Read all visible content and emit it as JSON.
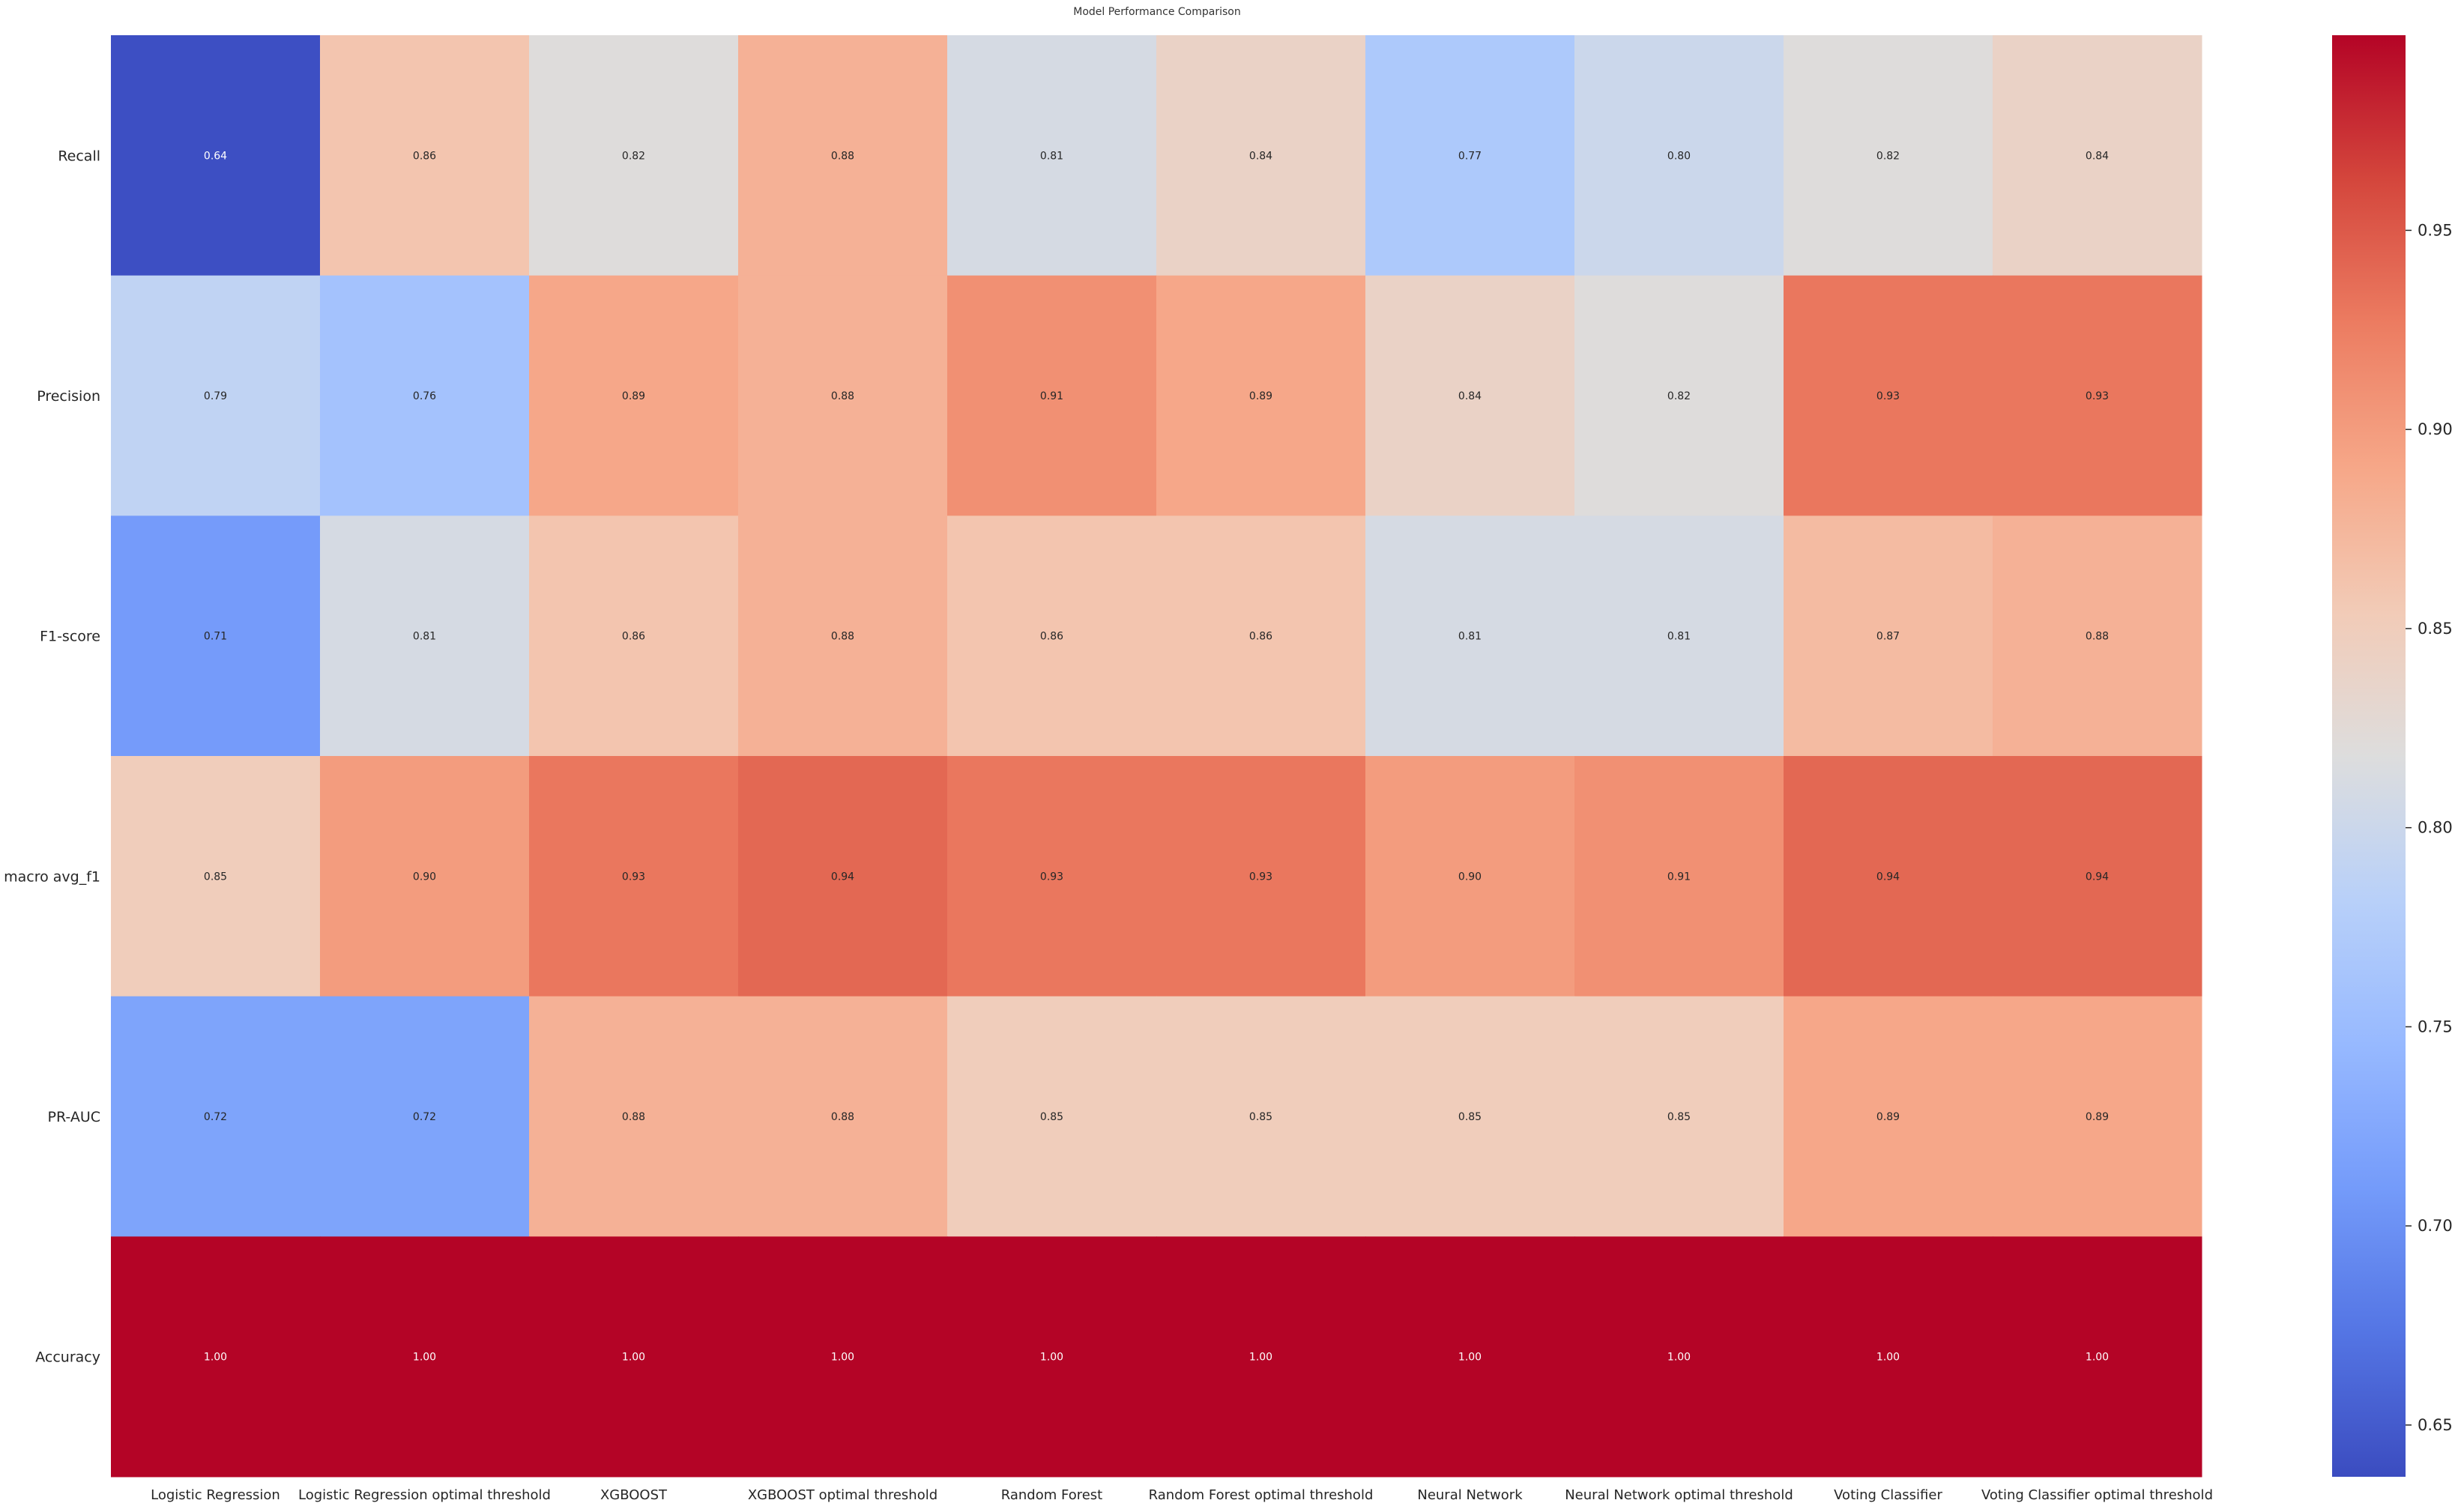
{
  "chart_data": {
    "type": "heatmap",
    "title": "Model Performance Comparison",
    "xlabel": "",
    "ylabel": "",
    "columns": [
      "Logistic Regression",
      "Logistic Regression optimal threshold",
      "XGBOOST",
      "XGBOOST optimal threshold",
      "Random Forest",
      "Random Forest optimal threshold",
      "Neural Network",
      "Neural Network optimal threshold",
      "Voting Classifier",
      "Voting Classifier optimal threshold"
    ],
    "rows": [
      "Recall",
      "Precision",
      "F1-score",
      "macro avg_f1",
      "PR-AUC",
      "Accuracy"
    ],
    "values": [
      [
        0.64,
        0.86,
        0.82,
        0.88,
        0.81,
        0.84,
        0.77,
        0.8,
        0.82,
        0.84
      ],
      [
        0.79,
        0.76,
        0.89,
        0.88,
        0.91,
        0.89,
        0.84,
        0.82,
        0.93,
        0.93
      ],
      [
        0.71,
        0.81,
        0.86,
        0.88,
        0.86,
        0.86,
        0.81,
        0.81,
        0.87,
        0.88
      ],
      [
        0.85,
        0.9,
        0.93,
        0.94,
        0.93,
        0.93,
        0.9,
        0.91,
        0.94,
        0.94
      ],
      [
        0.72,
        0.72,
        0.88,
        0.88,
        0.85,
        0.85,
        0.85,
        0.85,
        0.89,
        0.89
      ],
      [
        1.0,
        1.0,
        1.0,
        1.0,
        1.0,
        1.0,
        1.0,
        1.0,
        1.0,
        1.0
      ]
    ],
    "colormap": "coolwarm",
    "vmin": 0.637,
    "vmax": 0.999,
    "colorbar_ticks": [
      "0.65",
      "0.70",
      "0.75",
      "0.80",
      "0.85",
      "0.90",
      "0.95"
    ],
    "value_format": "0.00",
    "grid": false
  }
}
